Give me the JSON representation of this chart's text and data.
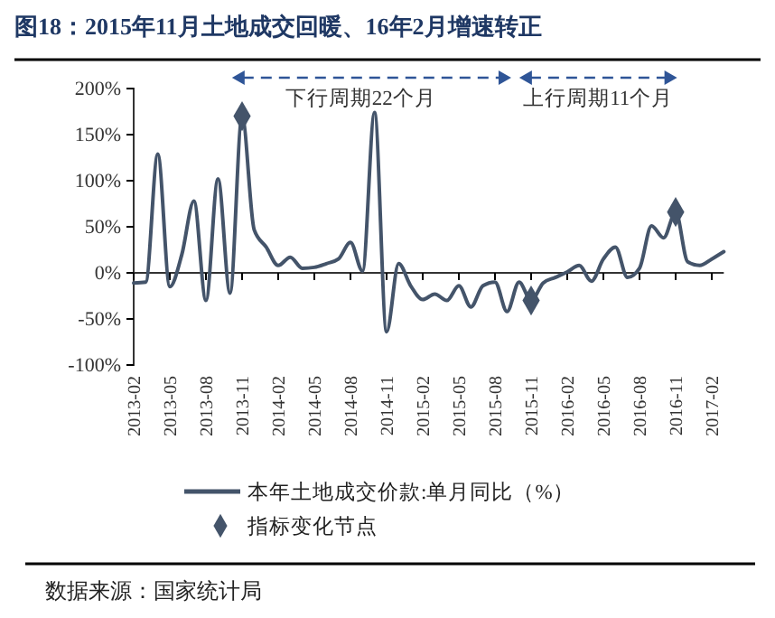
{
  "chart_data": {
    "type": "line",
    "title": "图18：2015年11月土地成交回暖、16年2月增速转正",
    "categories": [
      "2013-02",
      null,
      null,
      "2013-05",
      null,
      null,
      "2013-08",
      null,
      null,
      "2013-11",
      null,
      null,
      "2014-02",
      null,
      null,
      "2014-05",
      null,
      null,
      "2014-08",
      null,
      null,
      "2014-11",
      null,
      null,
      "2015-02",
      null,
      null,
      "2015-05",
      null,
      null,
      "2015-08",
      null,
      null,
      "2015-11",
      null,
      null,
      "2016-02",
      null,
      null,
      "2016-05",
      null,
      null,
      "2016-08",
      null,
      null,
      "2016-11",
      null,
      null,
      "2017-02",
      null
    ],
    "series": [
      {
        "name": "本年土地成交价款:单月同比（%）",
        "color": "#44546a",
        "values": [
          -11,
          -10,
          129,
          -15,
          20,
          78,
          -30,
          102,
          -22,
          170,
          47,
          28,
          8,
          17,
          5,
          6,
          10,
          15,
          33,
          2,
          174,
          -64,
          10,
          -14,
          -29,
          -23,
          -30,
          -14,
          -37,
          -14,
          -10,
          -42,
          -10,
          -30,
          -11,
          -5,
          1,
          8,
          -9,
          15,
          28,
          -5,
          5,
          51,
          38,
          66,
          12,
          8,
          15,
          23
        ]
      },
      {
        "name": "指标变化节点",
        "type": "scatter",
        "color": "#44546a",
        "marker": "diamond",
        "values": [
          null,
          null,
          null,
          null,
          null,
          null,
          null,
          null,
          null,
          170,
          null,
          null,
          null,
          null,
          null,
          null,
          null,
          null,
          null,
          null,
          null,
          null,
          null,
          null,
          null,
          null,
          null,
          null,
          null,
          null,
          null,
          null,
          null,
          -30,
          null,
          null,
          null,
          null,
          null,
          null,
          null,
          null,
          null,
          null,
          null,
          66,
          null,
          null,
          null,
          null
        ]
      }
    ],
    "ylim": [
      -100,
      200
    ],
    "yticks": [
      {
        "value": -100,
        "label": "-100%"
      },
      {
        "value": -50,
        "label": "-50%"
      },
      {
        "value": 0,
        "label": "0%"
      },
      {
        "value": 50,
        "label": "50%"
      },
      {
        "value": 100,
        "label": "100%"
      },
      {
        "value": 150,
        "label": "150%"
      },
      {
        "value": 200,
        "label": "200%"
      }
    ],
    "legend": "bottom",
    "annotations": [
      "下行周期22个月",
      "上行周期11个月",
      "数据来源：国家统计局"
    ]
  }
}
